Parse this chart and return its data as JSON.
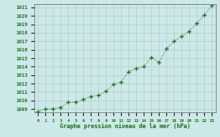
{
  "x": [
    0,
    1,
    2,
    3,
    4,
    5,
    6,
    7,
    8,
    9,
    10,
    11,
    12,
    13,
    14,
    15,
    16,
    17,
    18,
    19,
    20,
    21,
    22,
    23
  ],
  "y": [
    1008.7,
    1009.0,
    1009.0,
    1009.2,
    1009.8,
    1009.8,
    1010.1,
    1010.5,
    1010.6,
    1011.1,
    1011.9,
    1012.2,
    1013.4,
    1013.8,
    1014.0,
    1015.1,
    1014.5,
    1016.1,
    1017.0,
    1017.6,
    1018.2,
    1019.1,
    1020.1,
    1021.2
  ],
  "line_color": "#1a6b1a",
  "marker_color": "#1a6b1a",
  "bg_color": "#cce8e8",
  "grid_color": "#b0c8c8",
  "xlabel": "Graphe pression niveau de la mer (hPa)",
  "xlabel_color": "#1a6b1a",
  "ylim_min": 1009,
  "ylim_max": 1021,
  "ytick_step": 1,
  "spine_color": "#666666"
}
